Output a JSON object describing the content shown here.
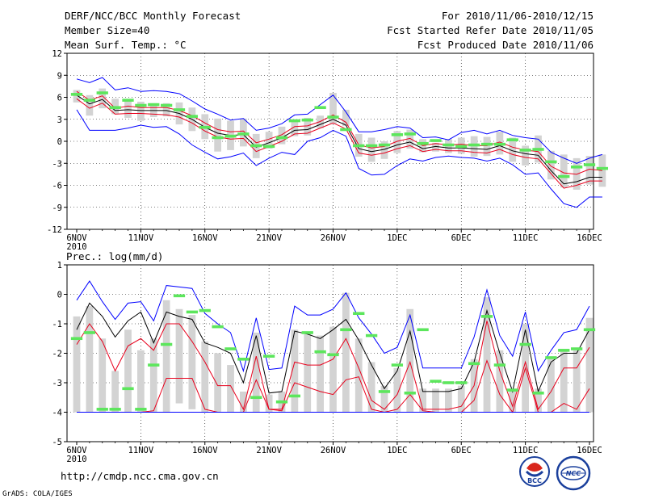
{
  "header": {
    "title": "DERF/NCC/BCC Monthly Forecast",
    "member_size": "Member Size=40",
    "for_range": "For 2010/11/06-2010/12/15",
    "started": "Fcst Started Refer Date 2010/11/05",
    "produced": "Fcst Produced Date 2010/11/06"
  },
  "footer": {
    "url": "http://cmdp.ncc.cma.gov.cn",
    "grads": "GrADS: COLA/IGES",
    "logo_bcc": "BCC",
    "logo_ncc": "NCC"
  },
  "colors": {
    "box": "#d3d3d3",
    "ensemble_mean": "#000000",
    "spread_inner": "#e8001c",
    "spread_outer": "#0000ff",
    "observed": "#5ce65c"
  },
  "chart_data": [
    {
      "type": "line",
      "title": "Mean Surf. Temp.: °C",
      "x_tick_labels": [
        "6NOV",
        "11NOV",
        "16NOV",
        "21NOV",
        "26NOV",
        "1DEC",
        "6DEC",
        "11DEC",
        "16DEC"
      ],
      "x_year_label": "2010",
      "ylim": [
        -12,
        12
      ],
      "y_ticks": [
        -12,
        -9,
        -6,
        -3,
        0,
        3,
        6,
        9,
        12
      ],
      "series": [
        {
          "name": "upper_outer",
          "color": "blue",
          "values": [
            8.5,
            8.0,
            8.7,
            7.0,
            7.3,
            6.8,
            6.9,
            6.8,
            6.5,
            5.5,
            4.4,
            3.7,
            2.9,
            3.1,
            1.5,
            1.8,
            2.4,
            3.6,
            3.7,
            5.0,
            6.3,
            4.0,
            1.3,
            1.3,
            1.6,
            2.0,
            1.8,
            0.5,
            0.6,
            0.2,
            1.2,
            1.5,
            1.0,
            1.5,
            0.8,
            0.5,
            0.3,
            -1.5,
            -2.3,
            -3.0,
            -2.3,
            -1.8
          ]
        },
        {
          "name": "upper_inner",
          "color": "red",
          "values": [
            6.8,
            5.6,
            6.2,
            4.5,
            4.8,
            4.6,
            4.6,
            4.6,
            4.2,
            3.5,
            2.5,
            1.6,
            1.3,
            1.4,
            -0.2,
            0.3,
            0.9,
            2.0,
            2.1,
            2.7,
            3.6,
            2.6,
            -0.5,
            -0.9,
            -0.7,
            0.0,
            0.4,
            -0.6,
            -0.3,
            -0.5,
            -0.4,
            -0.6,
            -0.6,
            -0.1,
            -0.8,
            -1.2,
            -1.4,
            -3.4,
            -4.3,
            -4.5,
            -3.8,
            -4.0
          ]
        },
        {
          "name": "ensemble_mean",
          "color": "black",
          "values": [
            6.3,
            5.1,
            5.7,
            4.2,
            4.3,
            4.2,
            4.2,
            4.2,
            3.8,
            3.0,
            1.9,
            1.1,
            0.8,
            0.9,
            -0.8,
            -0.2,
            0.5,
            1.5,
            1.6,
            2.3,
            3.0,
            2.2,
            -1.0,
            -1.4,
            -1.1,
            -0.5,
            -0.1,
            -1.0,
            -0.7,
            -0.9,
            -0.9,
            -1.0,
            -1.1,
            -0.6,
            -1.3,
            -1.7,
            -1.9,
            -4.0,
            -5.8,
            -5.5,
            -4.9,
            -4.9
          ]
        },
        {
          "name": "lower_inner",
          "color": "red",
          "values": [
            5.8,
            4.5,
            5.2,
            3.7,
            3.8,
            3.8,
            3.7,
            3.6,
            3.3,
            2.5,
            1.4,
            0.6,
            0.3,
            0.4,
            -1.4,
            -0.7,
            0.0,
            1.0,
            1.1,
            1.8,
            2.5,
            1.7,
            -1.6,
            -1.9,
            -1.6,
            -1.0,
            -0.6,
            -1.4,
            -1.1,
            -1.3,
            -1.3,
            -1.5,
            -1.6,
            -1.1,
            -1.8,
            -2.2,
            -2.4,
            -4.4,
            -6.4,
            -6.0,
            -5.4,
            -5.4
          ]
        },
        {
          "name": "lower_outer",
          "color": "blue",
          "values": [
            4.3,
            1.5,
            1.5,
            1.5,
            1.8,
            2.2,
            1.9,
            2.0,
            1.0,
            -0.5,
            -1.5,
            -2.4,
            -2.1,
            -1.6,
            -3.3,
            -2.3,
            -1.5,
            -1.8,
            0.0,
            0.5,
            1.5,
            0.7,
            -3.7,
            -4.6,
            -4.5,
            -3.3,
            -2.4,
            -2.7,
            -2.2,
            -2.0,
            -2.2,
            -2.3,
            -2.7,
            -2.3,
            -3.2,
            -4.5,
            -4.3,
            -6.5,
            -8.5,
            -9.0,
            -7.6,
            -7.6
          ]
        }
      ],
      "boxes": {
        "low": [
          5.3,
          3.5,
          4.5,
          3.7,
          3.2,
          2.8,
          3.3,
          3.4,
          2.3,
          1.4,
          0.3,
          -1.4,
          -1.2,
          -0.7,
          -2.3,
          -1.0,
          -0.4,
          0.7,
          0.8,
          1.8,
          2.4,
          2.1,
          -2.1,
          -2.8,
          -2.4,
          -1.6,
          -1.0,
          -1.5,
          -1.4,
          -1.6,
          -1.7,
          -2.1,
          -2.0,
          -1.8,
          -2.8,
          -3.3,
          -2.9,
          -5.2,
          -6.3,
          -6.6,
          -5.9,
          -6.2
        ],
        "high": [
          7.0,
          6.3,
          7.2,
          5.8,
          5.7,
          5.4,
          5.2,
          5.2,
          5.3,
          4.6,
          3.7,
          3.1,
          2.8,
          3.1,
          1.0,
          1.3,
          2.0,
          3.0,
          3.2,
          3.5,
          6.6,
          4.3,
          1.0,
          0.5,
          0.0,
          1.4,
          1.6,
          0.3,
          -0.2,
          0.3,
          0.5,
          0.7,
          0.6,
          1.3,
          0.5,
          -0.6,
          0.8,
          -1.3,
          -1.8,
          -2.3,
          -2.0,
          -1.8
        ]
      },
      "observed": [
        6.4,
        5.6,
        6.6,
        4.6,
        5.6,
        4.9,
        5.0,
        4.9,
        4.3,
        3.4,
        1.9,
        0.5,
        0.7,
        1.0,
        -0.6,
        -0.7,
        0.5,
        2.8,
        2.9,
        4.6,
        3.3,
        1.6,
        -0.6,
        -0.6,
        -0.5,
        0.9,
        1.0,
        -0.3,
        0.1,
        -0.5,
        -0.7,
        -0.5,
        -0.4,
        -0.4,
        0.2,
        -1.2,
        -1.1,
        -2.8,
        -4.8,
        -3.5,
        -3.2,
        -3.7
      ]
    },
    {
      "type": "line",
      "title": "Prec.: log(mm/d)",
      "x_tick_labels": [
        "6NOV",
        "11NOV",
        "16NOV",
        "21NOV",
        "26NOV",
        "1DEC",
        "6DEC",
        "11DEC",
        "16DEC"
      ],
      "x_year_label": "2010",
      "ylim": [
        -5,
        1
      ],
      "y_ticks": [
        -5,
        -4,
        -3,
        -2,
        -1,
        0,
        1
      ],
      "series": [
        {
          "name": "upper_outer",
          "color": "blue",
          "values": [
            -0.2,
            0.45,
            -0.25,
            -0.85,
            -0.3,
            -0.25,
            -0.9,
            0.3,
            0.25,
            0.2,
            -0.65,
            -1.0,
            -1.3,
            -2.6,
            -0.8,
            -2.55,
            -2.5,
            -0.4,
            -0.7,
            -0.7,
            -0.5,
            0.05,
            -0.8,
            -1.35,
            -2.0,
            -1.8,
            -0.7,
            -2.5,
            -2.5,
            -2.5,
            -2.5,
            -1.45,
            0.15,
            -1.4,
            -2.1,
            -0.6,
            -2.6,
            -1.9,
            -1.3,
            -1.2,
            -0.4
          ]
        },
        {
          "name": "ensemble_mean",
          "color": "black",
          "values": [
            -1.2,
            -0.3,
            -0.75,
            -1.45,
            -0.9,
            -0.6,
            -1.65,
            -0.6,
            -0.75,
            -0.85,
            -1.65,
            -1.8,
            -2.0,
            -3.0,
            -1.4,
            -3.35,
            -3.3,
            -1.25,
            -1.35,
            -1.5,
            -1.2,
            -0.85,
            -1.55,
            -2.4,
            -3.2,
            -2.6,
            -1.25,
            -3.3,
            -3.3,
            -3.3,
            -3.2,
            -2.3,
            -0.55,
            -2.0,
            -3.3,
            -1.2,
            -3.3,
            -2.3,
            -2.0,
            -2.0,
            -1.2
          ]
        },
        {
          "name": "inner_upper",
          "color": "red",
          "values": [
            -1.7,
            -1.0,
            -1.6,
            -2.6,
            -1.75,
            -1.5,
            -1.9,
            -1.0,
            -1.0,
            -1.6,
            -2.3,
            -3.1,
            -3.1,
            -3.9,
            -2.1,
            -3.9,
            -3.9,
            -2.3,
            -2.4,
            -2.4,
            -2.2,
            -1.5,
            -2.5,
            -3.6,
            -3.9,
            -3.4,
            -2.3,
            -3.9,
            -3.9,
            -3.9,
            -3.8,
            -3.1,
            -0.9,
            -2.6,
            -3.8,
            -2.3,
            -3.9,
            -3.3,
            -2.5,
            -2.5,
            -1.8
          ]
        },
        {
          "name": "inner_lower",
          "color": "red",
          "values": [
            -4.0,
            -4.0,
            -4.0,
            -4.0,
            -4.0,
            -4.0,
            -3.95,
            -2.85,
            -2.85,
            -2.85,
            -3.9,
            -4.0,
            -4.0,
            -4.0,
            -2.9,
            -3.9,
            -3.95,
            -3.0,
            -3.15,
            -3.3,
            -3.4,
            -2.9,
            -2.8,
            -3.9,
            -4.0,
            -3.9,
            -3.4,
            -3.95,
            -4.0,
            -4.0,
            -4.0,
            -3.6,
            -2.25,
            -3.4,
            -4.0,
            -2.5,
            -4.0,
            -4.0,
            -3.7,
            -3.9,
            -3.2
          ]
        },
        {
          "name": "lower_outer",
          "color": "blue",
          "values": [
            -4.0,
            -4.0,
            -4.0,
            -4.0,
            -4.0,
            -4.0,
            -4.0,
            -4.0,
            -4.0,
            -4.0,
            -4.0,
            -4.0,
            -4.0,
            -4.0,
            -4.0,
            -4.0,
            -4.0,
            -4.0,
            -4.0,
            -4.0,
            -4.0,
            -4.0,
            -4.0,
            -4.0,
            -4.0,
            -4.0,
            -4.0,
            -4.0,
            -4.0,
            -4.0,
            -4.0,
            -4.0,
            -4.0,
            -4.0,
            -4.0,
            -4.0,
            -4.0,
            -4.0,
            -4.0,
            -4.0,
            -4.0
          ]
        }
      ],
      "boxes": {
        "low": [
          -4.0,
          -4.0,
          -4.0,
          -4.0,
          -4.0,
          -4.0,
          -4.0,
          -4.0,
          -3.7,
          -3.9,
          -4.0,
          -4.0,
          -4.0,
          -4.0,
          -4.0,
          -4.0,
          -4.0,
          -4.0,
          -4.0,
          -4.0,
          -4.0,
          -4.0,
          -4.0,
          -4.0,
          -4.0,
          -4.0,
          -4.0,
          -4.0,
          -4.0,
          -4.0,
          -4.0,
          -4.0,
          -4.0,
          -4.0,
          -4.0,
          -4.0,
          -4.0,
          -4.0,
          -4.0,
          -4.0,
          -4.0
        ],
        "high": [
          -0.75,
          -0.4,
          -1.5,
          -2.6,
          -1.2,
          -1.9,
          -1.5,
          -0.2,
          -0.5,
          -0.7,
          -1.6,
          -2.0,
          -2.4,
          -3.3,
          -1.3,
          -3.4,
          -3.3,
          -1.2,
          -1.3,
          -1.4,
          -1.1,
          0.05,
          -1.5,
          -2.3,
          -3.1,
          -2.5,
          -0.5,
          -3.2,
          -3.2,
          -3.2,
          -3.1,
          -2.2,
          -0.1,
          -1.9,
          -3.2,
          -1.0,
          -3.2,
          -2.2,
          -1.9,
          -1.9,
          -0.8
        ]
      },
      "observed": [
        -1.5,
        -1.3,
        -3.9,
        -3.9,
        -3.2,
        -3.9,
        -2.4,
        -1.7,
        -0.05,
        -0.6,
        -0.55,
        -1.1,
        -1.85,
        -2.2,
        -3.5,
        -2.1,
        -3.65,
        -3.45,
        -1.3,
        -1.95,
        -2.05,
        -1.2,
        -0.65,
        -1.4,
        -3.3,
        -2.4,
        -3.35,
        -1.2,
        -2.95,
        -3.0,
        -3.0,
        -2.35,
        -0.75,
        -2.4,
        -3.25,
        -1.7,
        -3.35,
        -2.15,
        -1.9,
        -1.85,
        -1.2
      ]
    }
  ]
}
